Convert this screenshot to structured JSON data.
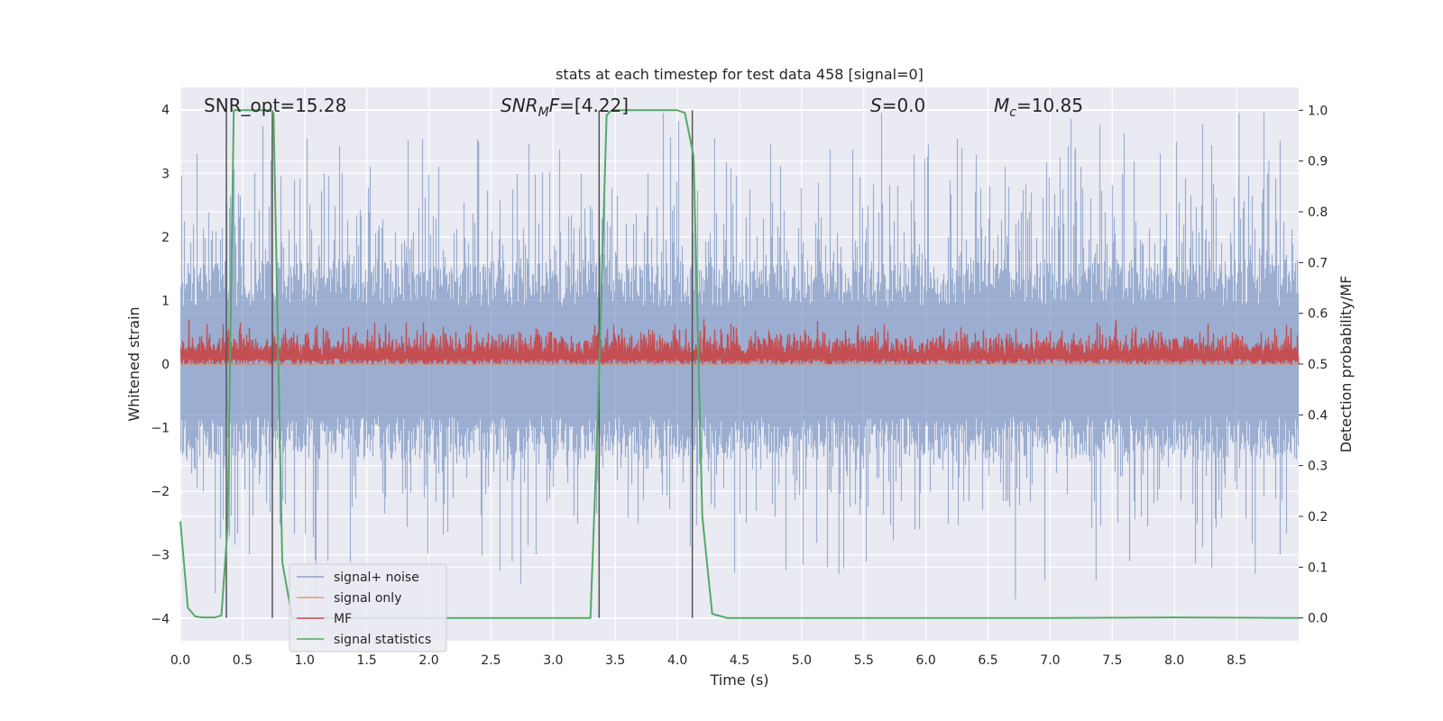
{
  "chart_data": {
    "type": "line",
    "title": "stats at each timestep for test data 458 [signal=0]",
    "xlabel": "Time (s)",
    "ylabel_left": "Whitened strain",
    "ylabel_right": "Detection probability/MF",
    "xlim": [
      0.0,
      9.0
    ],
    "ylim_left": [
      -4.35,
      4.35
    ],
    "ylim_right": [
      -0.045,
      1.045
    ],
    "x_ticks": [
      "0.0",
      "0.5",
      "1.0",
      "1.5",
      "2.0",
      "2.5",
      "3.0",
      "3.5",
      "4.0",
      "4.5",
      "5.0",
      "5.5",
      "6.0",
      "6.5",
      "7.0",
      "7.5",
      "8.0",
      "8.5"
    ],
    "y_ticks_left": [
      "−4",
      "−3",
      "−2",
      "−1",
      "0",
      "1",
      "2",
      "3",
      "4"
    ],
    "y_ticks_right": [
      "0.0",
      "0.1",
      "0.2",
      "0.3",
      "0.4",
      "0.5",
      "0.6",
      "0.7",
      "0.8",
      "0.9",
      "1.0"
    ],
    "grid": true,
    "legend_position": "lower-left",
    "annotations": [
      {
        "segments": [
          {
            "text": "SNR_opt=15.28"
          }
        ]
      },
      {
        "segments": [
          {
            "text": "SNR",
            "italic": true
          },
          {
            "text": "M",
            "italic": true,
            "sub": true
          },
          {
            "text": "F",
            "italic": true
          },
          {
            "text": "=[4.22]"
          }
        ]
      },
      {
        "segments": [
          {
            "text": "S",
            "italic": true
          },
          {
            "text": "=0.0"
          }
        ]
      },
      {
        "segments": [
          {
            "text": "M",
            "italic": true
          },
          {
            "text": "c",
            "italic": true,
            "sub": true
          },
          {
            "text": "=10.85"
          }
        ]
      }
    ],
    "series": [
      {
        "name": "signal+ noise",
        "color": "#4c72b0",
        "opacity": 0.5,
        "axis": "left",
        "kind": "noise",
        "envelope": {
          "bulk_low": -1.5,
          "bulk_high": 1.65,
          "spike_max": 3.95,
          "spike_min": -3.7
        }
      },
      {
        "name": "signal only",
        "color": "#dd8452",
        "opacity": 0.8,
        "axis": "left",
        "kind": "flat",
        "value": 0.0
      },
      {
        "name": "MF",
        "color": "#c44e52",
        "opacity": 1,
        "axis": "right",
        "kind": "mf",
        "range": [
          0.5,
          0.6
        ]
      },
      {
        "name": "signal statistics",
        "color": "#55a868",
        "opacity": 1,
        "axis": "right",
        "x": [
          0.0,
          0.06,
          0.12,
          0.18,
          0.28,
          0.33,
          0.38,
          0.43,
          0.46,
          0.55,
          0.65,
          0.72,
          0.75,
          0.82,
          0.9,
          1.0,
          2.0,
          3.0,
          3.3,
          3.36,
          3.43,
          3.47,
          3.6,
          3.9,
          4.0,
          4.06,
          4.13,
          4.2,
          4.28,
          4.4,
          5.0,
          6.0,
          7.0,
          8.0,
          9.0
        ],
        "y": [
          0.19,
          0.02,
          0.003,
          0.001,
          0.001,
          0.005,
          0.18,
          1.0,
          1.0,
          1.0,
          1.0,
          1.0,
          0.995,
          0.11,
          0.0,
          0.0,
          0.0,
          0.0,
          0.0,
          0.4,
          0.99,
          1.0,
          1.0,
          1.0,
          1.0,
          0.995,
          0.91,
          0.2,
          0.008,
          0.0,
          0.0,
          0.0,
          0.0,
          0.001,
          0.0
        ]
      }
    ],
    "vlines": [
      0.37,
      0.74,
      3.37,
      4.12
    ]
  }
}
